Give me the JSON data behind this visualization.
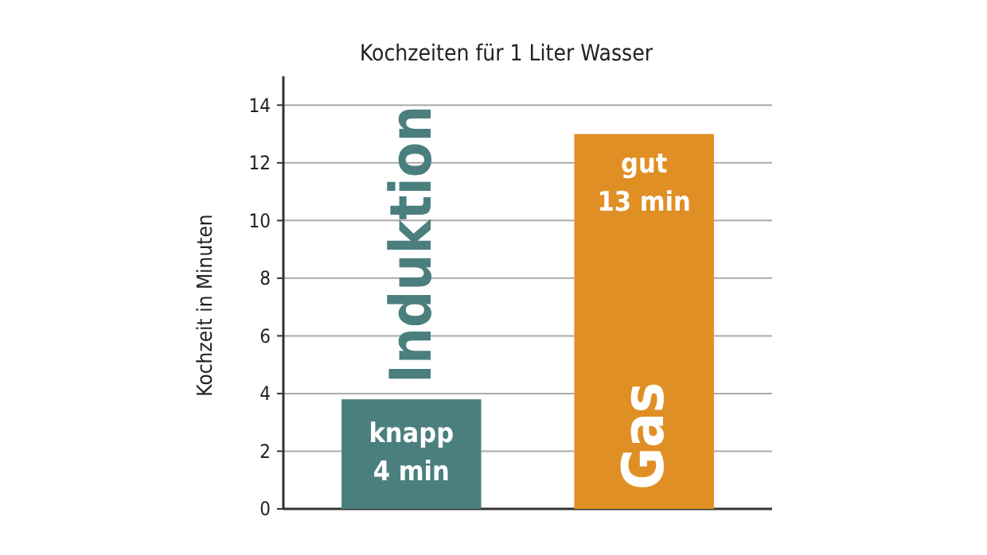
{
  "chart_data": {
    "type": "bar",
    "title": "Kochzeiten für 1 Liter Wasser",
    "ylabel": "Kochzeit in Minuten",
    "categories": [
      "Induktion",
      "Gas"
    ],
    "values": [
      3.8,
      13
    ],
    "colors": [
      "#4a7f7e",
      "#e08f25"
    ],
    "value_labels": [
      "knapp 4 min",
      "gut 13 min"
    ],
    "ylim": [
      0,
      15
    ],
    "yticks": [
      0,
      2,
      4,
      6,
      8,
      10,
      12,
      14
    ],
    "grid": "y"
  }
}
